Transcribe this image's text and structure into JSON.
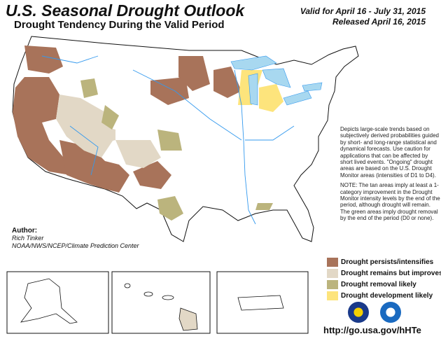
{
  "header": {
    "title": "U.S. Seasonal Drought Outlook",
    "subtitle": "Drought Tendency During the Valid Period",
    "valid": "Valid for April 16 - July 31, 2015",
    "released": "Released April 16, 2015"
  },
  "description": {
    "para1": "Depicts large-scale trends based on subjectively derived probabilities guided by short- and long-range statistical and dynamical forecasts. Use caution for applications that can be affected by short lived events. \"Ongoing\" drought areas are based on the U.S. Drought Monitor areas (intensities of D1 to D4).",
    "para2": "NOTE: The tan areas imply at least a 1-category improvement in the Drought Monitor intensity levels by the end of the period, although drought will remain. The green areas imply drought removal by the end of the period (D0 or none)."
  },
  "author": {
    "label": "Author:",
    "name": "Rich Tinker",
    "org": "NOAA/NWS/NCEP/Climate Prediction Center"
  },
  "legend": [
    {
      "label": "Drought persists/intensifies",
      "color": "#a8735a"
    },
    {
      "label": "Drought remains but improves",
      "color": "#e2d8c6"
    },
    {
      "label": "Drought removal likely",
      "color": "#bbb47d"
    },
    {
      "label": "Drought development likely",
      "color": "#fde47c"
    }
  ],
  "colors": {
    "water": "#a8d8f0",
    "river": "#3399ee"
  },
  "url": "http://go.usa.gov/hHTe",
  "logos": [
    "noaa-nws-logo",
    "noaa-logo"
  ]
}
